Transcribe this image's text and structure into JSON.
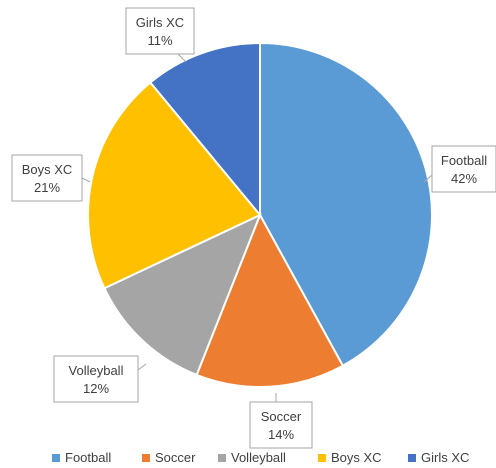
{
  "chart_data": {
    "type": "pie",
    "title": "",
    "categories": [
      "Football",
      "Soccer",
      "Volleyball",
      "Boys XC",
      "Girls XC"
    ],
    "values": [
      42,
      14,
      12,
      21,
      11
    ],
    "labels": [
      "42%",
      "14%",
      "12%",
      "21%",
      "11%"
    ],
    "colors": [
      "#5b9bd5",
      "#ed7d31",
      "#a5a5a5",
      "#ffc000",
      "#4472c4"
    ],
    "start_angle_deg": 0,
    "direction": "clockwise",
    "data_label_style": "callout",
    "legend": {
      "position": "bottom",
      "entries": [
        "Football",
        "Soccer",
        "Volleyball",
        "Boys XC",
        "Girls XC"
      ]
    }
  }
}
